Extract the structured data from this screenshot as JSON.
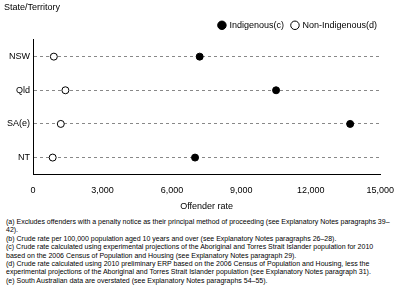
{
  "chart_data": {
    "type": "dot",
    "orientation": "horizontal",
    "y_label": "State/Territory",
    "x_label": "Offender rate",
    "categories": [
      "NSW",
      "Qld",
      "SA(e)",
      "NT"
    ],
    "series": [
      {
        "name": "Indigenous(c)",
        "color": "#000000",
        "marker": "filled_circle",
        "values": [
          7200,
          10500,
          13700,
          7000
        ]
      },
      {
        "name": "Non-Indigenous(d)",
        "color": "#000000",
        "marker": "open_circle",
        "values": [
          900,
          1400,
          1200,
          850
        ]
      }
    ],
    "xlim": [
      0,
      15000
    ],
    "xticks": [
      0,
      3000,
      6000,
      9000,
      12000,
      15000
    ],
    "grid": true,
    "legend": "top-right",
    "annotations": [
      "(a) Excludes offenders with a penalty notice as their principal method of proceeding (see Explanatory Notes paragraphs 39–42).",
      "(b) Crude rate per 100,000 population aged 10 years and over (see Explanatory Notes paragraphs 26–28).",
      "(c) Crude rate calculated using experimental projections of the Aboriginal and Torres Strait Islander population for 2010 based on the 2006 Census of Population and Housing (see Explanatory Notes paragraph 29).",
      "(d) Crude rate calculated using 2010 preliminary ERP based on the 2006 Census of Population and Housing, less the experimental projections of the Aboriginal and Torres Strait Islander population (see Explanatory Notes paragraph 31).",
      "(e) South Australian data are overstated (see Explanatory Notes paragraphs 54–55)."
    ]
  }
}
